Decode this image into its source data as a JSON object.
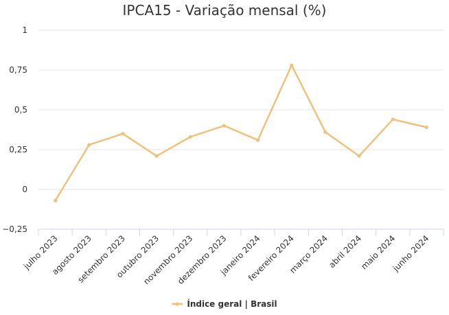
{
  "chart_data": {
    "type": "line",
    "title": "IPCA15 - Variação mensal (%)",
    "categories": [
      "julho 2023",
      "agosto 2023",
      "setembro 2023",
      "outubro 2023",
      "novembro 2023",
      "dezembro 2023",
      "janeiro 2024",
      "fevereiro 2024",
      "março 2024",
      "abril 2024",
      "maio 2024",
      "junho 2024"
    ],
    "series": [
      {
        "name": "Índice geral | Brasil",
        "color": "#f0c17c",
        "values": [
          -0.07,
          0.28,
          0.35,
          0.21,
          0.33,
          0.4,
          0.31,
          0.78,
          0.36,
          0.21,
          0.44,
          0.39
        ]
      }
    ],
    "ylim": [
      -0.25,
      1
    ],
    "yticks": [
      -0.25,
      0,
      0.25,
      0.5,
      0.75,
      1
    ],
    "ytick_labels": [
      "−0,25",
      "0",
      "0,25",
      "0,5",
      "0,75",
      "1"
    ],
    "grid": true,
    "legend_position": "bottom-center"
  }
}
